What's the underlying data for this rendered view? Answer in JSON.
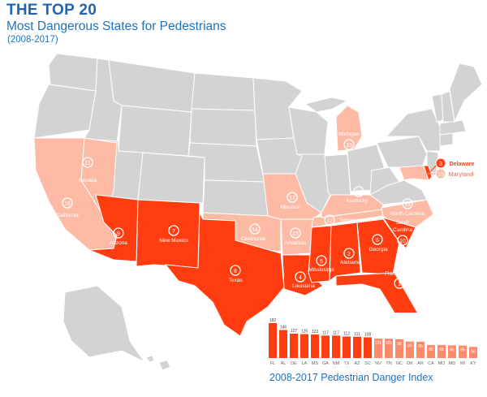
{
  "header": {
    "title": "THE TOP 20",
    "subtitle": "Most Dangerous States for Pedestrians",
    "date_range": "(2008-2017)"
  },
  "colors": {
    "tier1": "#ff3d11",
    "tier2": "#ff8a6b",
    "tier3": "#fdbaa5",
    "other_states": "#d3d3d3",
    "border": "#ffffff",
    "title_blue": "#1f66ad"
  },
  "states": [
    {
      "rank": "1",
      "name": "Florida",
      "tier": "tier1"
    },
    {
      "rank": "2",
      "name": "Alabama",
      "tier": "tier1"
    },
    {
      "rank": "3",
      "name": "Delaware",
      "tier": "tier1"
    },
    {
      "rank": "4",
      "name": "Louisiana",
      "tier": "tier1"
    },
    {
      "rank": "5",
      "name": "Mississippi",
      "tier": "tier1"
    },
    {
      "rank": "6",
      "name": "Georgia",
      "tier": "tier1"
    },
    {
      "rank": "7",
      "name": "New Mexico",
      "tier": "tier1"
    },
    {
      "rank": "8",
      "name": "Texas",
      "tier": "tier1"
    },
    {
      "rank": "9",
      "name": "Arizona",
      "tier": "tier1"
    },
    {
      "rank": "10",
      "name": "South Carolina",
      "tier": "tier1"
    },
    {
      "rank": "11",
      "name": "Nevada",
      "tier": "tier2"
    },
    {
      "rank": "12",
      "name": "Tennessee",
      "tier": "tier2"
    },
    {
      "rank": "13",
      "name": "North Carolina",
      "tier": "tier2"
    },
    {
      "rank": "14",
      "name": "Oklahoma",
      "tier": "tier2"
    },
    {
      "rank": "15",
      "name": "Arkansas",
      "tier": "tier2"
    },
    {
      "rank": "16",
      "name": "California",
      "tier": "tier2"
    },
    {
      "rank": "17",
      "name": "Missouri",
      "tier": "tier2"
    },
    {
      "rank": "18",
      "name": "Maryland",
      "tier": "tier2"
    },
    {
      "rank": "19",
      "name": "Michigan",
      "tier": "tier2"
    },
    {
      "rank": "20",
      "name": "Kentucky",
      "tier": "tier2"
    }
  ],
  "chart_data": {
    "type": "bar",
    "title": "2008-2017 Pedestrian Danger Index",
    "categories": [
      "FL",
      "AL",
      "DE",
      "LA",
      "MS",
      "GA",
      "NM",
      "TX",
      "AZ",
      "SC",
      "NV",
      "TN",
      "NC",
      "OK",
      "AR",
      "CA",
      "MO",
      "MD",
      "MI",
      "KY"
    ],
    "values": [
      182,
      146,
      127,
      125,
      123,
      117,
      117,
      112,
      111,
      108,
      101,
      101,
      98,
      86,
      85,
      68,
      68,
      66,
      65,
      58
    ],
    "value_labels": [
      "182",
      "146",
      "127",
      "125",
      "123",
      "117",
      "117",
      "112",
      "111",
      "108",
      "101",
      "101",
      "98",
      "86",
      "85",
      "68",
      "68",
      "66",
      "65",
      "58"
    ],
    "bar_colors": [
      "tier1",
      "tier1",
      "tier1",
      "tier1",
      "tier1",
      "tier1",
      "tier1",
      "tier1",
      "tier1",
      "tier1",
      "tier2",
      "tier2",
      "tier2",
      "tier2",
      "tier2",
      "tier2",
      "tier2",
      "tier2",
      "tier2",
      "tier2"
    ],
    "ylim": [
      0,
      182
    ]
  }
}
